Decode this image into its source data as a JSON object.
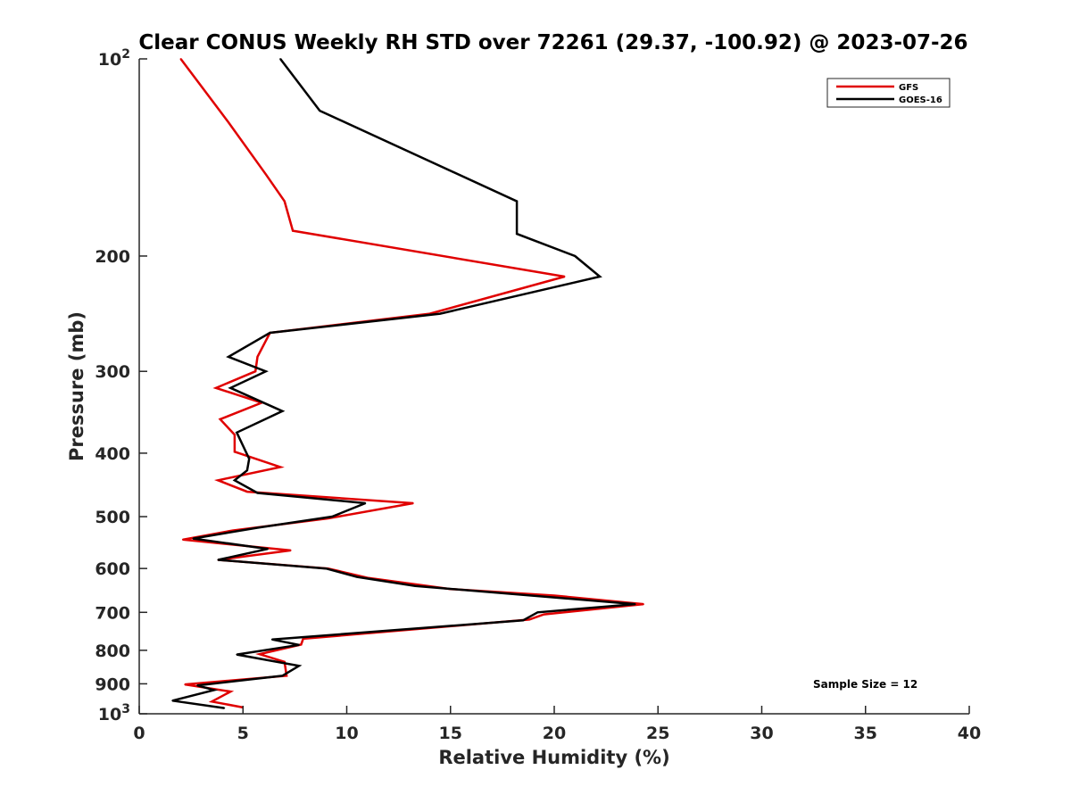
{
  "chart_data": {
    "type": "line",
    "title": "Clear CONUS Weekly RH STD over 72261 (29.37, -100.92) @ 2023-07-26",
    "xlabel": "Relative Humidity (%)",
    "ylabel": "Pressure (mb)",
    "xlim": [
      0,
      40
    ],
    "ylim": [
      100,
      1000
    ],
    "yscale": "log",
    "y_reversed": true,
    "x_ticks": [
      "0",
      "5",
      "10",
      "15",
      "20",
      "25",
      "30",
      "35",
      "40"
    ],
    "y_ticks": [
      {
        "value": 100,
        "base": "10",
        "exp": "2"
      },
      {
        "value": 200,
        "label": "200"
      },
      {
        "value": 300,
        "label": "300"
      },
      {
        "value": 400,
        "label": "400"
      },
      {
        "value": 500,
        "label": "500"
      },
      {
        "value": 600,
        "label": "600"
      },
      {
        "value": 700,
        "label": "700"
      },
      {
        "value": 800,
        "label": "800"
      },
      {
        "value": 900,
        "label": "900"
      },
      {
        "value": 1000,
        "base": "10",
        "exp": "3"
      }
    ],
    "legend_position": "top-right",
    "annotation": "Sample Size = 12",
    "series": [
      {
        "name": "GFS",
        "color": "#e00000",
        "points": [
          [
            2.0,
            100
          ],
          [
            4.3,
            125
          ],
          [
            6.1,
            150
          ],
          [
            7.0,
            165
          ],
          [
            7.4,
            183
          ],
          [
            20.5,
            215
          ],
          [
            14.0,
            245
          ],
          [
            6.3,
            262
          ],
          [
            5.7,
            285
          ],
          [
            5.6,
            300
          ],
          [
            3.7,
            318
          ],
          [
            5.9,
            335
          ],
          [
            3.9,
            355
          ],
          [
            4.6,
            375
          ],
          [
            4.6,
            398
          ],
          [
            6.8,
            420
          ],
          [
            3.8,
            440
          ],
          [
            5.2,
            458
          ],
          [
            13.2,
            477
          ],
          [
            9.1,
            503
          ],
          [
            4.5,
            525
          ],
          [
            2.1,
            542
          ],
          [
            7.3,
            563
          ],
          [
            3.8,
            582
          ],
          [
            9.1,
            600
          ],
          [
            11.0,
            620
          ],
          [
            15.0,
            645
          ],
          [
            20.0,
            660
          ],
          [
            24.3,
            680
          ],
          [
            19.5,
            705
          ],
          [
            18.8,
            718
          ],
          [
            7.9,
            768
          ],
          [
            7.8,
            784
          ],
          [
            5.8,
            811
          ],
          [
            7.0,
            833
          ],
          [
            7.1,
            875
          ],
          [
            2.2,
            902
          ],
          [
            4.4,
            925
          ],
          [
            3.5,
            958
          ],
          [
            5.0,
            978
          ]
        ]
      },
      {
        "name": "GOES-16",
        "color": "#000000",
        "points": [
          [
            6.8,
            100
          ],
          [
            8.7,
            120
          ],
          [
            18.2,
            165
          ],
          [
            18.2,
            185
          ],
          [
            21.0,
            200
          ],
          [
            22.2,
            215
          ],
          [
            14.5,
            245
          ],
          [
            6.3,
            262
          ],
          [
            4.3,
            285
          ],
          [
            6.1,
            300
          ],
          [
            4.4,
            318
          ],
          [
            6.9,
            345
          ],
          [
            4.7,
            372
          ],
          [
            5.3,
            408
          ],
          [
            5.2,
            425
          ],
          [
            4.6,
            440
          ],
          [
            5.7,
            460
          ],
          [
            10.9,
            477
          ],
          [
            9.3,
            500
          ],
          [
            5.7,
            520
          ],
          [
            2.6,
            540
          ],
          [
            6.2,
            560
          ],
          [
            3.8,
            582
          ],
          [
            9.0,
            600
          ],
          [
            10.5,
            618
          ],
          [
            13.3,
            638
          ],
          [
            23.9,
            680
          ],
          [
            19.2,
            700
          ],
          [
            18.5,
            720
          ],
          [
            6.4,
            770
          ],
          [
            7.7,
            785
          ],
          [
            4.7,
            812
          ],
          [
            7.7,
            845
          ],
          [
            6.9,
            875
          ],
          [
            2.8,
            905
          ],
          [
            3.6,
            920
          ],
          [
            1.6,
            955
          ],
          [
            4.1,
            980
          ]
        ]
      }
    ]
  }
}
